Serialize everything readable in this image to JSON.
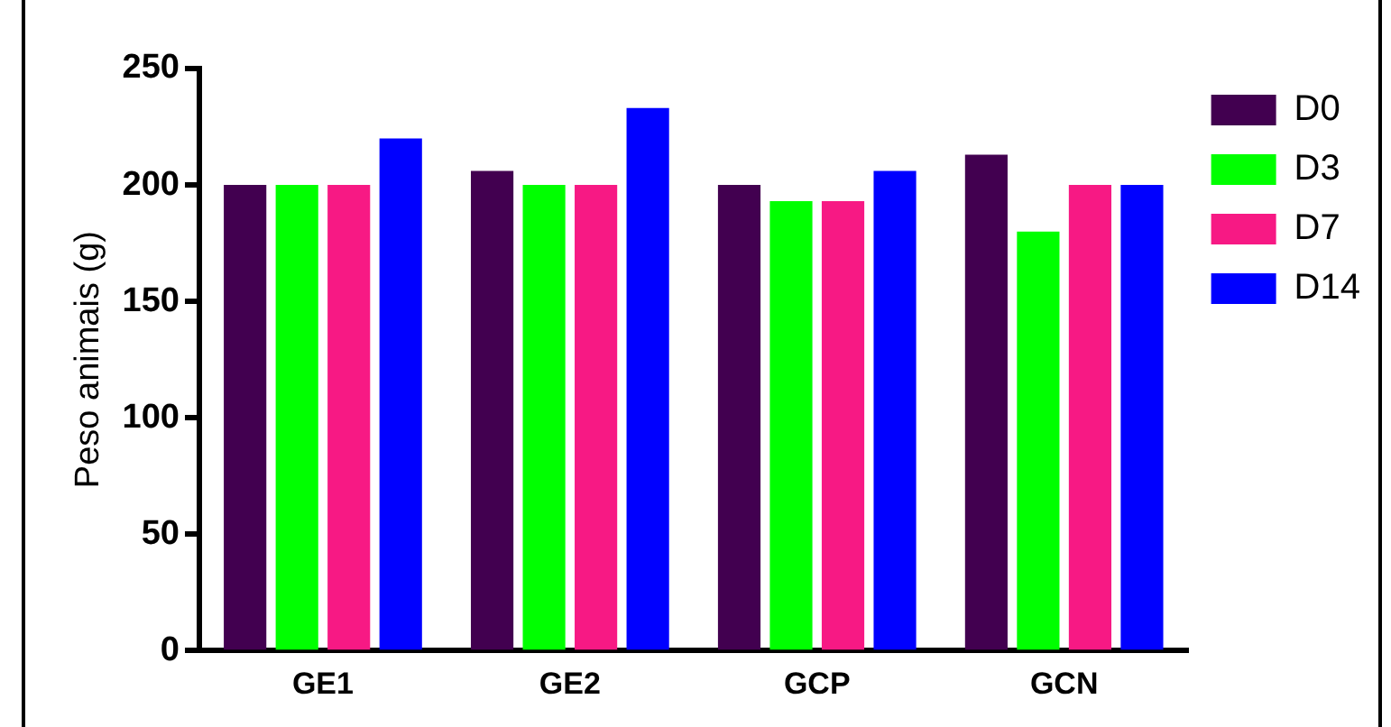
{
  "chart_data": {
    "type": "bar",
    "ylabel": "Peso animais (g)",
    "categories": [
      "GE1",
      "GE2",
      "GCP",
      "GCN"
    ],
    "series": [
      {
        "name": "D0",
        "color": "#420050",
        "values": [
          200,
          206,
          200,
          213
        ]
      },
      {
        "name": "D3",
        "color": "#00ff00",
        "values": [
          200,
          200,
          193,
          180
        ]
      },
      {
        "name": "D7",
        "color": "#f71984",
        "values": [
          200,
          200,
          193,
          200
        ]
      },
      {
        "name": "D14",
        "color": "#0000ff",
        "values": [
          220,
          233,
          206,
          200
        ]
      }
    ],
    "ylim": [
      0,
      250
    ],
    "yticks": [
      0,
      50,
      100,
      150,
      200,
      250
    ],
    "grid": false,
    "legend": "right"
  }
}
